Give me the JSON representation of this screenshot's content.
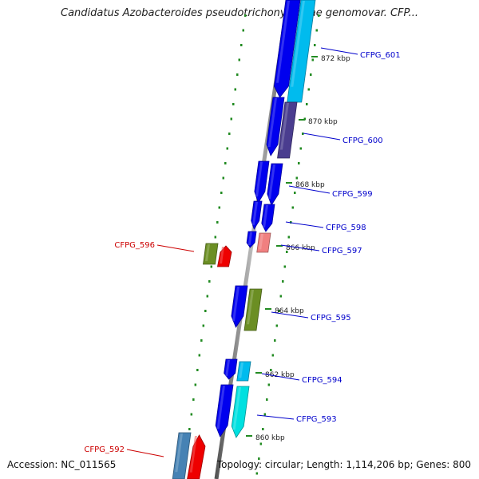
{
  "map": {
    "title": "Candidatus Azobacteroides pseudotrichonymphae genomovar. CFP...",
    "accession": "Accession: NC_011565",
    "summary": "Topology: circular; Length: 1,114,206 bp; Genes: 800"
  },
  "colors": {
    "blue": "#0000ee",
    "cyan": "#00bbee",
    "aqua": "#00e0e0",
    "purple": "#4a3d8f",
    "olive": "#6b8e23",
    "red": "#ee0000",
    "pink": "#f08080",
    "steel": "#4682b4",
    "label_blue": "#0000cc",
    "label_red": "#cc0000",
    "tick_green": "#228b22"
  },
  "kbp_labels": [
    "872 kbp",
    "870 kbp",
    "868 kbp",
    "866 kbp",
    "864 kbp",
    "862 kbp",
    "860 kbp"
  ],
  "genes": [
    {
      "name": "CFPG_601",
      "strand": "+",
      "color": "label_blue"
    },
    {
      "name": "CFPG_600",
      "strand": "+",
      "color": "label_blue"
    },
    {
      "name": "CFPG_599",
      "strand": "+",
      "color": "label_blue"
    },
    {
      "name": "CFPG_598",
      "strand": "+",
      "color": "label_blue"
    },
    {
      "name": "CFPG_597",
      "strand": "+",
      "color": "label_blue"
    },
    {
      "name": "CFPG_596",
      "strand": "-",
      "color": "label_red"
    },
    {
      "name": "CFPG_595",
      "strand": "+",
      "color": "label_blue"
    },
    {
      "name": "CFPG_594",
      "strand": "+",
      "color": "label_blue"
    },
    {
      "name": "CFPG_593",
      "strand": "+",
      "color": "label_blue"
    },
    {
      "name": "CFPG_592",
      "strand": "-",
      "color": "label_red"
    }
  ]
}
